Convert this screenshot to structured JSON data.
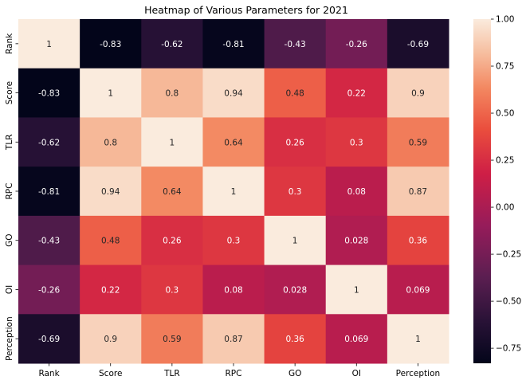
{
  "chart_data": {
    "type": "heatmap",
    "title": "Heatmap of Various Parameters for 2021",
    "x_labels": [
      "Rank",
      "Score",
      "TLR",
      "RPC",
      "GO",
      "OI",
      "Perception"
    ],
    "y_labels": [
      "Rank",
      "Score",
      "TLR",
      "RPC",
      "GO",
      "OI",
      "Perception"
    ],
    "values": [
      [
        1,
        -0.83,
        -0.62,
        -0.81,
        -0.43,
        -0.26,
        -0.69
      ],
      [
        -0.83,
        1,
        0.8,
        0.94,
        0.48,
        0.22,
        0.9
      ],
      [
        -0.62,
        0.8,
        1,
        0.64,
        0.26,
        0.3,
        0.59
      ],
      [
        -0.81,
        0.94,
        0.64,
        1,
        0.3,
        0.08,
        0.87
      ],
      [
        -0.43,
        0.48,
        0.26,
        0.3,
        1,
        0.028,
        0.36
      ],
      [
        -0.26,
        0.22,
        0.3,
        0.08,
        0.028,
        1,
        0.069
      ],
      [
        -0.69,
        0.9,
        0.59,
        0.87,
        0.36,
        0.069,
        1
      ]
    ],
    "labels": [
      [
        "1",
        "-0.83",
        "-0.62",
        "-0.81",
        "-0.43",
        "-0.26",
        "-0.69"
      ],
      [
        "-0.83",
        "1",
        "0.8",
        "0.94",
        "0.48",
        "0.22",
        "0.9"
      ],
      [
        "-0.62",
        "0.8",
        "1",
        "0.64",
        "0.26",
        "0.3",
        "0.59"
      ],
      [
        "-0.81",
        "0.94",
        "0.64",
        "1",
        "0.3",
        "0.08",
        "0.87"
      ],
      [
        "-0.43",
        "0.48",
        "0.26",
        "0.3",
        "1",
        "0.028",
        "0.36"
      ],
      [
        "-0.26",
        "0.22",
        "0.3",
        "0.08",
        "0.028",
        "1",
        "0.069"
      ],
      [
        "-0.69",
        "0.9",
        "0.59",
        "0.87",
        "0.36",
        "0.069",
        "1"
      ]
    ],
    "colorscale": "rocket",
    "vmin": -0.83,
    "vmax": 1,
    "colorbar_ticks": [
      1.0,
      0.75,
      0.5,
      0.25,
      0.0,
      -0.25,
      -0.5,
      -0.75
    ],
    "colorbar_tick_labels": [
      "1.00",
      "0.75",
      "0.50",
      "0.25",
      "0.00",
      "−0.25",
      "−0.50",
      "−0.75"
    ],
    "legend_position": "right"
  }
}
